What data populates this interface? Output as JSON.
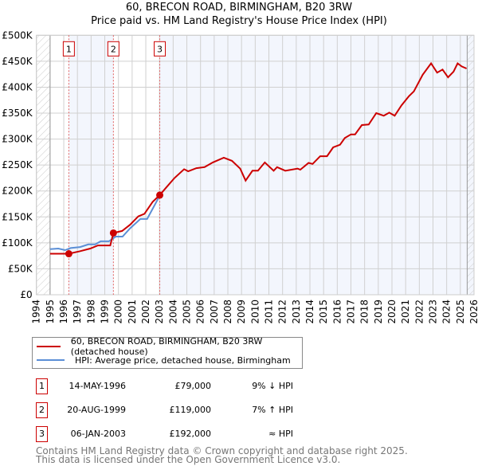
{
  "title_line1": "60, BRECON ROAD, BIRMINGHAM, B20 3RW",
  "title_line2": "Price paid vs. HM Land Registry's House Price Index (HPI)",
  "chart_data": {
    "type": "line",
    "xlim": [
      1994,
      2026
    ],
    "ylim": [
      0,
      500000
    ],
    "x_ticks": [
      1994,
      1995,
      1996,
      1997,
      1998,
      1999,
      2000,
      2001,
      2002,
      2003,
      2004,
      2005,
      2006,
      2007,
      2008,
      2009,
      2010,
      2011,
      2012,
      2013,
      2014,
      2015,
      2016,
      2017,
      2018,
      2019,
      2020,
      2021,
      2022,
      2023,
      2024,
      2025,
      2026
    ],
    "y_ticks": [
      {
        "v": 0,
        "label": "£0"
      },
      {
        "v": 50000,
        "label": "£50K"
      },
      {
        "v": 100000,
        "label": "£100K"
      },
      {
        "v": 150000,
        "label": "£150K"
      },
      {
        "v": 200000,
        "label": "£200K"
      },
      {
        "v": 250000,
        "label": "£250K"
      },
      {
        "v": 300000,
        "label": "£300K"
      },
      {
        "v": 350000,
        "label": "£350K"
      },
      {
        "v": 400000,
        "label": "£400K"
      },
      {
        "v": 450000,
        "label": "£450K"
      },
      {
        "v": 500000,
        "label": "£500K"
      }
    ],
    "grid": true,
    "hatched_ranges": [
      [
        1994,
        1995
      ],
      [
        2025.5,
        2026
      ]
    ],
    "series": [
      {
        "name": "60, BRECON ROAD, BIRMINGHAM, B20 3RW (detached house)",
        "color": "#cc0000",
        "x": [
          1995.0,
          1996.37,
          1997.2,
          1997.94,
          1998.5,
          1999.4,
          1999.63,
          2000.27,
          2000.85,
          2001.45,
          2001.9,
          2002.5,
          2003.02,
          2003.5,
          2004.1,
          2004.8,
          2005.1,
          2005.7,
          2006.3,
          2006.9,
          2007.7,
          2008.3,
          2008.9,
          2009.3,
          2009.8,
          2010.2,
          2010.7,
          2011.35,
          2011.6,
          2012.2,
          2013.1,
          2013.3,
          2013.9,
          2014.2,
          2014.75,
          2015.25,
          2015.7,
          2016.2,
          2016.55,
          2017.0,
          2017.3,
          2017.8,
          2018.3,
          2018.85,
          2019.4,
          2019.8,
          2020.2,
          2020.7,
          2021.25,
          2021.6,
          2022.25,
          2022.86,
          2023.3,
          2023.7,
          2024.1,
          2024.5,
          2024.8,
          2025.1,
          2025.45
        ],
        "y": [
          79000,
          79000,
          84000,
          89000,
          95000,
          95000,
          119000,
          123000,
          135000,
          151000,
          156000,
          179000,
          192000,
          207000,
          225000,
          242000,
          238000,
          244000,
          246000,
          255000,
          264000,
          258000,
          243000,
          220000,
          239000,
          239000,
          255000,
          239000,
          246000,
          239000,
          243000,
          241000,
          254000,
          252000,
          267000,
          267000,
          284000,
          289000,
          302000,
          309000,
          309000,
          327000,
          328000,
          350000,
          345000,
          351000,
          345000,
          365000,
          383000,
          392000,
          424000,
          446000,
          428000,
          434000,
          419000,
          430000,
          446000,
          440000,
          436000
        ]
      },
      {
        "name": "HPI: Average price, detached house, Birmingham",
        "color": "#5b8fd6",
        "x": [
          1995.0,
          1995.6,
          1996.1,
          1996.5,
          1997.2,
          1997.8,
          1998.3,
          1998.7,
          1999.3,
          1999.8,
          2000.3,
          2000.85,
          2001.6,
          2002.1,
          2003.0
        ],
        "y": [
          88000,
          89000,
          86000,
          90000,
          92000,
          97000,
          97000,
          103000,
          103000,
          112000,
          112000,
          128000,
          146000,
          146000,
          190000
        ]
      }
    ],
    "sales": [
      {
        "label": "1",
        "x": 1996.37,
        "y": 79000
      },
      {
        "label": "2",
        "x": 1999.63,
        "y": 119000
      },
      {
        "label": "3",
        "x": 2003.02,
        "y": 192000
      }
    ],
    "shaded_ranges": [
      [
        1996.37,
        1999.63
      ],
      [
        2003.02,
        2026
      ]
    ],
    "legend_position": "bottom-left"
  },
  "legend": [
    {
      "label": "60, BRECON ROAD, BIRMINGHAM, B20 3RW (detached house)",
      "color": "#cc0000"
    },
    {
      "label": "HPI: Average price, detached house, Birmingham",
      "color": "#5b8fd6"
    }
  ],
  "transactions": [
    {
      "num": "1",
      "date": "14-MAY-1996",
      "price": "£79,000",
      "hpi": "9% ↓ HPI"
    },
    {
      "num": "2",
      "date": "20-AUG-1999",
      "price": "£119,000",
      "hpi": "7% ↑ HPI"
    },
    {
      "num": "3",
      "date": "06-JAN-2003",
      "price": "£192,000",
      "hpi": "≈ HPI"
    }
  ],
  "footer_line1": "Contains HM Land Registry data © Crown copyright and database right 2025.",
  "footer_line2": "This data is licensed under the Open Government Licence v3.0."
}
